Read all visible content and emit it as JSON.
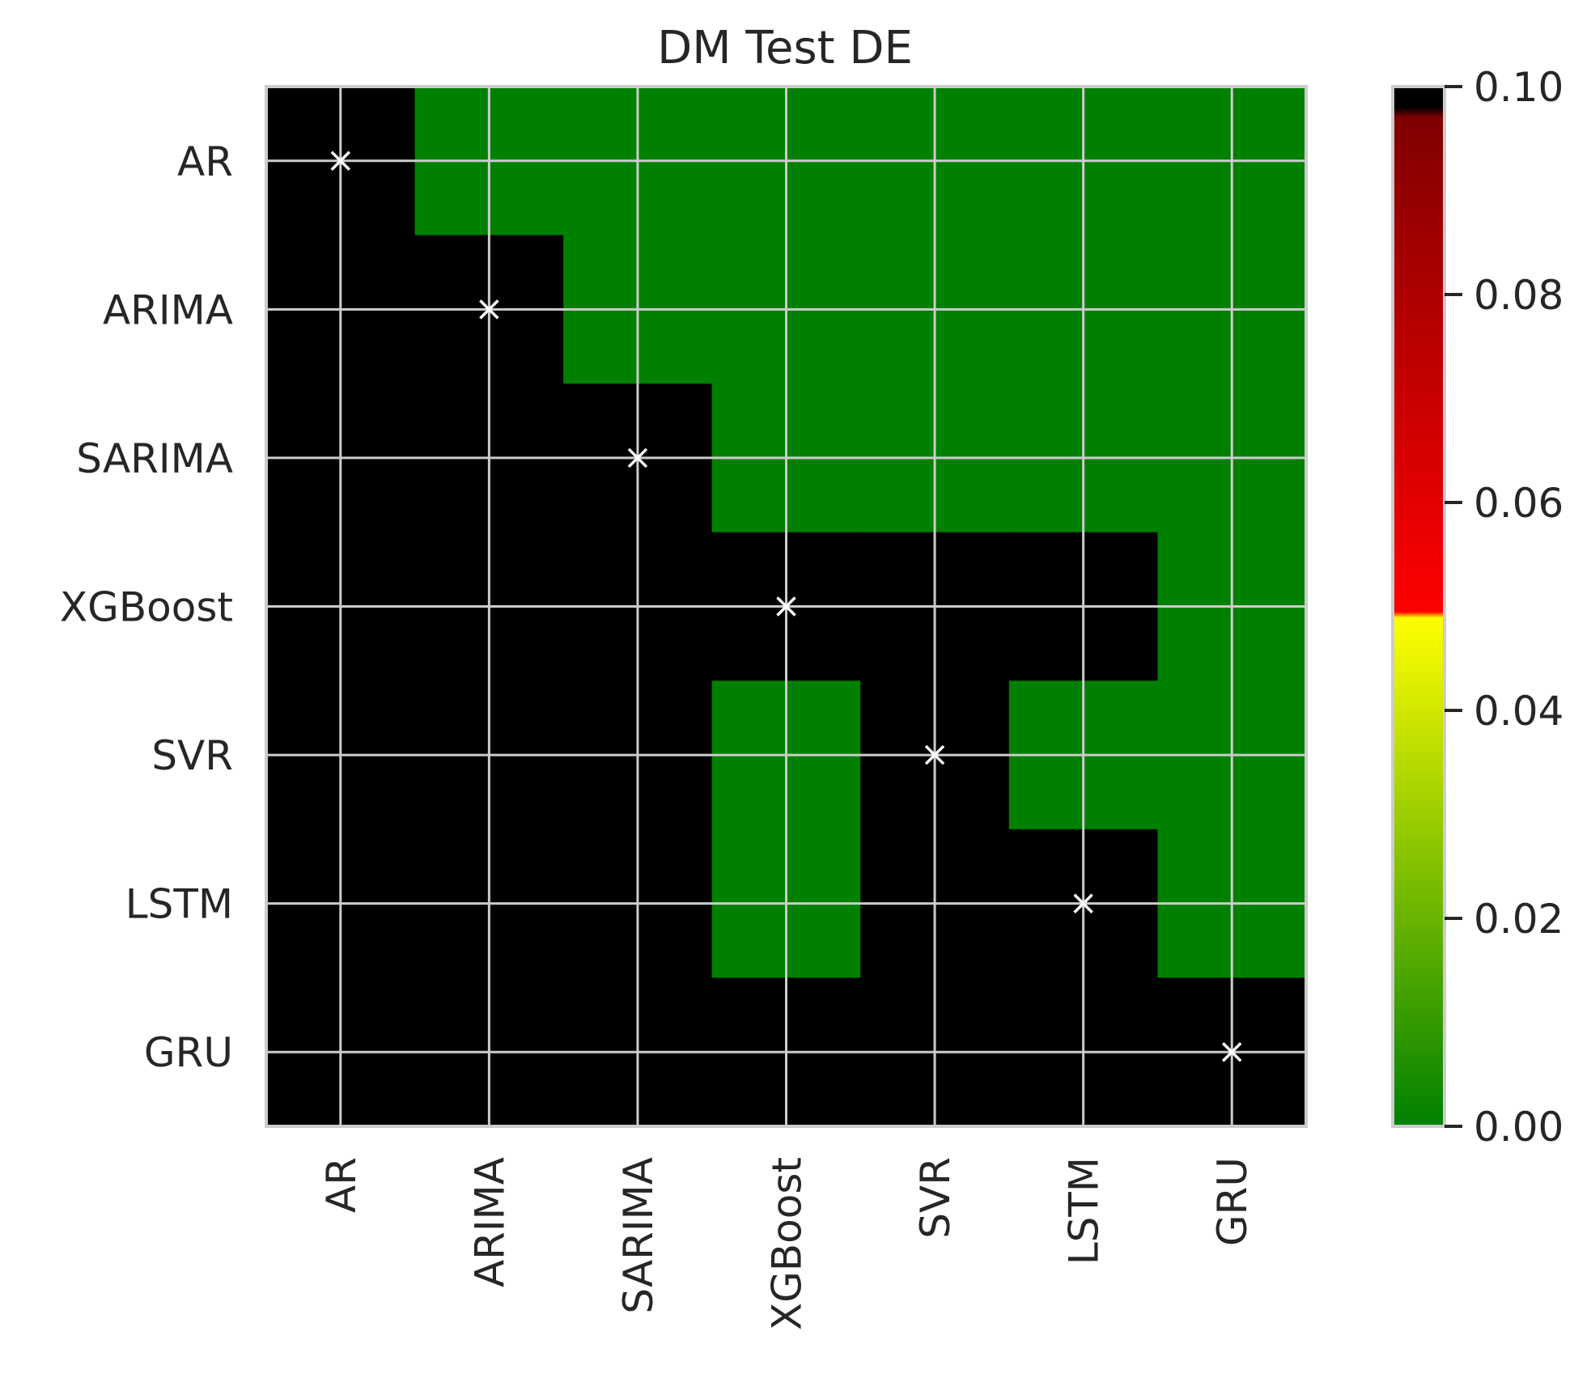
{
  "chart_data": {
    "type": "heatmap",
    "title": "DM Test DE",
    "row_labels": [
      "AR",
      "ARIMA",
      "SARIMA",
      "XGBoost",
      "SVR",
      "LSTM",
      "GRU"
    ],
    "col_labels": [
      "AR",
      "ARIMA",
      "SARIMA",
      "XGBoost",
      "SVR",
      "LSTM",
      "GRU"
    ],
    "matrix": [
      [
        0.1,
        0.0,
        0.0,
        0.0,
        0.0,
        0.0,
        0.0
      ],
      [
        0.1,
        0.1,
        0.0,
        0.0,
        0.0,
        0.0,
        0.0
      ],
      [
        0.1,
        0.1,
        0.1,
        0.0,
        0.0,
        0.0,
        0.0
      ],
      [
        0.1,
        0.1,
        0.1,
        0.1,
        0.1,
        0.1,
        0.0
      ],
      [
        0.1,
        0.1,
        0.1,
        0.0,
        0.1,
        0.0,
        0.0
      ],
      [
        0.1,
        0.1,
        0.1,
        0.0,
        0.1,
        0.1,
        0.0
      ],
      [
        0.1,
        0.1,
        0.1,
        0.1,
        0.1,
        0.1,
        0.1
      ]
    ],
    "diagonal_marker": "×",
    "grid": true,
    "colorbar": {
      "min": 0.0,
      "max": 0.1,
      "ticks": [
        "0.00",
        "0.02",
        "0.04",
        "0.06",
        "0.08",
        "0.10"
      ],
      "colors": {
        "low": "#008000",
        "mid_low": "#ffff00",
        "mid_high": "#ff0000",
        "high": "#800000",
        "top": "#000000"
      }
    }
  }
}
